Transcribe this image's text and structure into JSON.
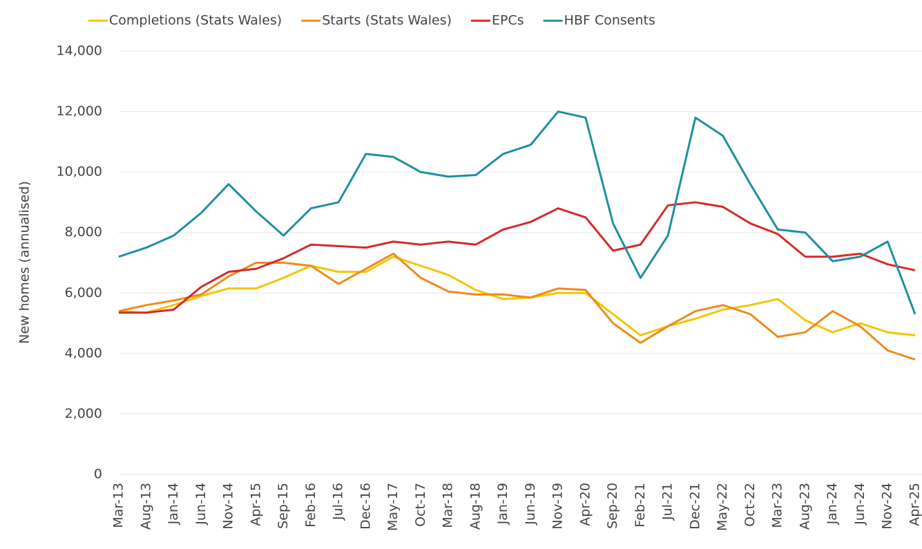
{
  "chart_data": {
    "type": "line",
    "y_label": "New homes (annualised)",
    "categories": [
      "Mar-13",
      "Aug-13",
      "Jan-14",
      "Jun-14",
      "Nov-14",
      "Apr-15",
      "Sep-15",
      "Feb-16",
      "Jul-16",
      "Dec-16",
      "May-17",
      "Oct-17",
      "Mar-18",
      "Aug-18",
      "Jan-19",
      "Jun-19",
      "Nov-19",
      "Apr-20",
      "Sep-20",
      "Feb-21",
      "Jul-21",
      "Dec-21",
      "May-22",
      "Oct-22",
      "Mar-23",
      "Aug-23",
      "Jan-24",
      "Jun-24",
      "Nov-24",
      "Apr-25"
    ],
    "series": [
      {
        "name": "Completions (Stats Wales)",
        "color": "#f5c400",
        "values": [
          5400,
          5350,
          5600,
          5900,
          6150,
          6150,
          6500,
          6900,
          6700,
          6700,
          7200,
          6900,
          6600,
          6100,
          5800,
          5850,
          6000,
          6000,
          5300,
          4600,
          4900,
          5150,
          5450,
          5600,
          5800,
          5100,
          4700,
          5000,
          4700,
          4600
        ]
      },
      {
        "name": "Starts (Stats Wales)",
        "color": "#f08a1c",
        "values": [
          5400,
          5600,
          5750,
          5950,
          6550,
          7000,
          7000,
          6900,
          6300,
          6800,
          7300,
          6500,
          6050,
          5950,
          5950,
          5850,
          6150,
          6100,
          5000,
          4350,
          4900,
          5400,
          5600,
          5300,
          4550,
          4700,
          5400,
          4900,
          4100,
          3800
        ]
      },
      {
        "name": "EPCs",
        "color": "#d42a2a",
        "values": [
          5350,
          5350,
          5450,
          6200,
          6700,
          6800,
          7150,
          7600,
          7550,
          7500,
          7700,
          7600,
          7700,
          7600,
          8100,
          8350,
          8800,
          8500,
          7400,
          7600,
          8900,
          9000,
          8850,
          8300,
          7950,
          7200,
          7200,
          7300,
          6950,
          6750
        ]
      },
      {
        "name": "HBF Consents",
        "color": "#1e8fa0",
        "values": [
          7200,
          7500,
          7900,
          8650,
          9600,
          8700,
          7900,
          8800,
          9000,
          10600,
          10500,
          10000,
          9850,
          9900,
          10600,
          10900,
          12000,
          11800,
          8300,
          6500,
          7900,
          11800,
          11200,
          9600,
          8100,
          8000,
          7050,
          7200,
          7700,
          5300
        ]
      }
    ],
    "ylim": [
      0,
      14000
    ],
    "yticks": [
      0,
      {
        "value": 2000,
        "label": "2,000"
      },
      {
        "value": 4000,
        "label": "4,000"
      },
      {
        "value": 6000,
        "label": "6,000"
      },
      {
        "value": 8000,
        "label": "8,000"
      },
      {
        "value": 10000,
        "label": "10,000"
      },
      {
        "value": 12000,
        "label": "12,000"
      },
      {
        "value": 14000,
        "label": "14,000"
      }
    ],
    "grid": true
  }
}
